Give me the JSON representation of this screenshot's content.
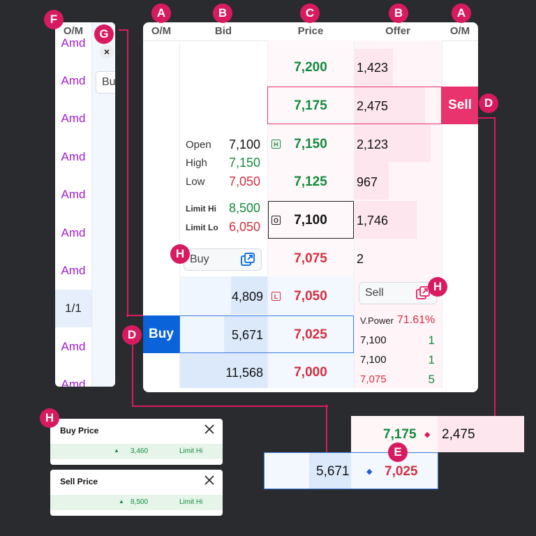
{
  "markers": {
    "a": "A",
    "b": "B",
    "c": "C",
    "d": "D",
    "e": "E",
    "f": "F",
    "g": "G",
    "h": "H"
  },
  "headers": {
    "om_left": "O/M",
    "bid": "Bid",
    "price": "Price",
    "offer": "Offer",
    "om_right": "O/M",
    "left_om": "O/M"
  },
  "asks": [
    {
      "price": "7,200",
      "offer": "1,423"
    },
    {
      "price": "7,175",
      "offer": "2,475"
    },
    {
      "price": "7,150",
      "offer": "2,123"
    },
    {
      "price": "7,125",
      "offer": "967"
    },
    {
      "price": "7,100",
      "offer": "1,746"
    },
    {
      "price": "7,075",
      "offer": "2"
    }
  ],
  "bids": [
    {
      "price": "7,050",
      "bid": "4,809"
    },
    {
      "price": "7,025",
      "bid": "5,671"
    },
    {
      "price": "7,000",
      "bid": "11,568"
    }
  ],
  "stats": {
    "open_label": "Open",
    "open": "7,100",
    "high_label": "High",
    "high": "7,150",
    "low_label": "Low",
    "low": "7,050",
    "limit_hi_label": "Limit Hi",
    "limit_hi": "8,500",
    "limit_lo_label": "Limit Lo",
    "limit_lo": "6,050"
  },
  "tags": {
    "high": "H",
    "open": "O",
    "low": "L"
  },
  "buttons": {
    "sell": "Sell",
    "buy": "Buy",
    "buy_order": "Buy",
    "sell_order": "Sell"
  },
  "vpower": {
    "label": "V.Power",
    "value": "71.61%"
  },
  "ticks": [
    {
      "price": "7,100",
      "vol": "1",
      "color": "#111"
    },
    {
      "price": "7,100",
      "vol": "1",
      "color": "#111"
    },
    {
      "price": "7,075",
      "vol": "5",
      "color": "#d32f3f"
    }
  ],
  "left_panel": {
    "items": [
      "Amd",
      "Amd",
      "Amd",
      "Amd",
      "Amd",
      "Amd",
      "Amd",
      "1/1",
      "Amd",
      "Amd"
    ],
    "close": "×",
    "input_peek": "Bu"
  },
  "popups": {
    "buy": {
      "title": "Buy Price",
      "value": "3,460",
      "limit": "Limit Hi"
    },
    "sell": {
      "title": "Sell Price",
      "value": "8,500",
      "limit": "Limit Hi"
    }
  },
  "zoom": {
    "sell_price": "7,175",
    "sell_offer": "2,475",
    "buy_bid": "5,671",
    "buy_price": "7,025"
  },
  "colors": {
    "accent": "#d81b60",
    "buy": "#0a63d8",
    "sell": "#e8336e",
    "green": "#138a3e",
    "red": "#d32f3f"
  }
}
